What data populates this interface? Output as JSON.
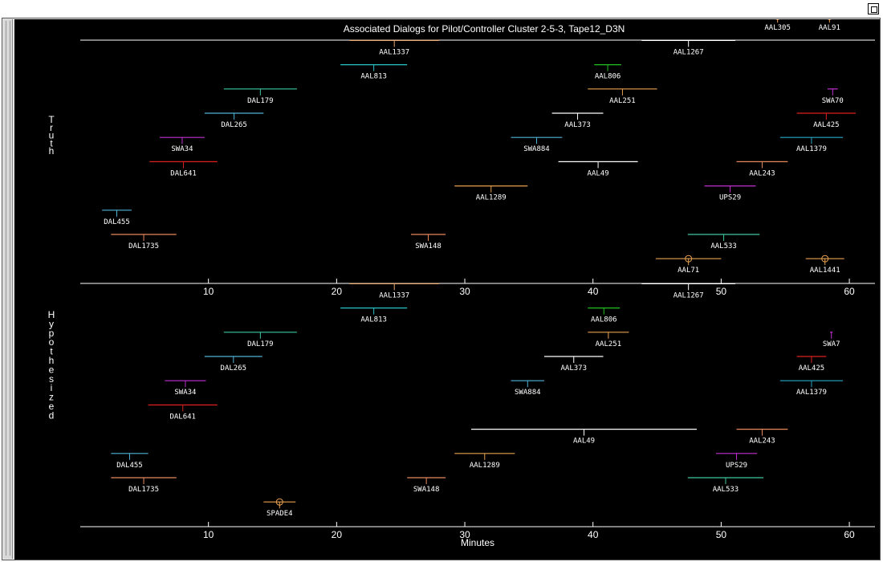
{
  "title": "Associated Dialogs for Pilot/Controller Cluster 2-5-3, Tape12_D3N",
  "xlabel": "Minutes",
  "colors": {
    "background": "#000000",
    "axis": "#ffffff",
    "text": "#ffffff"
  },
  "chart_data": [
    {
      "type": "timeline",
      "panel_label": "Truth",
      "xlim": [
        0,
        62
      ],
      "xticks": [
        10,
        20,
        30,
        40,
        50,
        60
      ],
      "rows": 10,
      "intervals": [
        {
          "name": "DAL455",
          "start": 1.7,
          "end": 4.0,
          "row": 1,
          "color": "#4fb3d9"
        },
        {
          "name": "DAL1735",
          "start": 2.4,
          "end": 7.5,
          "row": 0,
          "color": "#e8895c"
        },
        {
          "name": "DAL641",
          "start": 5.4,
          "end": 10.7,
          "row": 3,
          "color": "#dd2020"
        },
        {
          "name": "SWA34",
          "start": 6.2,
          "end": 9.7,
          "row": 4,
          "color": "#c030d0"
        },
        {
          "name": "DAL265",
          "start": 9.7,
          "end": 14.3,
          "row": 5,
          "color": "#4fb3d9"
        },
        {
          "name": "DAL179",
          "start": 11.2,
          "end": 16.9,
          "row": 6,
          "color": "#3cc8a0"
        },
        {
          "name": "AAL813",
          "start": 20.3,
          "end": 25.5,
          "row": 7,
          "color": "#29c4c4"
        },
        {
          "name": "AAL1337",
          "start": 21.0,
          "end": 28.0,
          "row": 8,
          "color": "#e8a870"
        },
        {
          "name": "SWA148",
          "start": 25.8,
          "end": 28.5,
          "row": 0,
          "color": "#e8895c"
        },
        {
          "name": "AAL1289",
          "start": 29.2,
          "end": 34.9,
          "row": 2,
          "color": "#e8a050"
        },
        {
          "name": "SWA884",
          "start": 33.6,
          "end": 37.6,
          "row": 4,
          "color": "#4fb3d9"
        },
        {
          "name": "AAL373",
          "start": 36.8,
          "end": 40.8,
          "row": 5,
          "color": "#ffffff"
        },
        {
          "name": "AAL49",
          "start": 37.3,
          "end": 43.5,
          "row": 3,
          "color": "#ffffff"
        },
        {
          "name": "AAL251",
          "start": 39.6,
          "end": 45.0,
          "row": 6,
          "color": "#e8a050"
        },
        {
          "name": "AAL806",
          "start": 40.1,
          "end": 42.2,
          "row": 7,
          "color": "#22c022"
        },
        {
          "name": "AAL1267",
          "start": 43.8,
          "end": 51.1,
          "row": 8,
          "color": "#ffffff"
        },
        {
          "name": "AAL71",
          "start": 44.9,
          "end": 50.0,
          "row": -1,
          "color": "#e8a050",
          "marker": "circle"
        },
        {
          "name": "AAL533",
          "start": 47.4,
          "end": 53.0,
          "row": 0,
          "color": "#3cc8a0"
        },
        {
          "name": "UPS29",
          "start": 48.7,
          "end": 52.7,
          "row": 2,
          "color": "#c030d0"
        },
        {
          "name": "AAL243",
          "start": 51.2,
          "end": 55.2,
          "row": 3,
          "color": "#e8895c"
        },
        {
          "name": "AAL305",
          "start": 52.0,
          "end": 56.8,
          "row": 9,
          "color": "#e8a050",
          "marker": "circle"
        },
        {
          "name": "AAL1379",
          "start": 54.6,
          "end": 59.5,
          "row": 4,
          "color": "#29a8c4"
        },
        {
          "name": "AAL425",
          "start": 55.9,
          "end": 60.5,
          "row": 5,
          "color": "#dd2020"
        },
        {
          "name": "AAL1441",
          "start": 56.6,
          "end": 59.6,
          "row": -1,
          "color": "#e8a050",
          "marker": "circle"
        },
        {
          "name": "SWA70",
          "start": 58.3,
          "end": 59.1,
          "row": 6,
          "color": "#c030d0"
        },
        {
          "name": "AAL91",
          "start": 57.4,
          "end": 59.5,
          "row": 9,
          "color": "#e8a050",
          "marker": "circle"
        }
      ]
    },
    {
      "type": "timeline",
      "panel_label": "Hypothesized",
      "xlim": [
        0,
        62
      ],
      "xticks": [
        10,
        20,
        30,
        40,
        50,
        60
      ],
      "rows": 9,
      "intervals": [
        {
          "name": "SPADE4",
          "start": 14.3,
          "end": 16.8,
          "row": -1,
          "color": "#e8a050",
          "marker": "circle"
        },
        {
          "name": "DAL1735",
          "start": 2.4,
          "end": 7.5,
          "row": 0,
          "color": "#e8895c"
        },
        {
          "name": "DAL455",
          "start": 2.4,
          "end": 5.3,
          "row": 1,
          "color": "#4fb3d9"
        },
        {
          "name": "DAL641",
          "start": 5.3,
          "end": 10.7,
          "row": 3,
          "color": "#dd2020"
        },
        {
          "name": "SWA34",
          "start": 6.6,
          "end": 9.8,
          "row": 4,
          "color": "#c030d0"
        },
        {
          "name": "DAL265",
          "start": 9.7,
          "end": 14.2,
          "row": 5,
          "color": "#4fb3d9"
        },
        {
          "name": "DAL179",
          "start": 11.2,
          "end": 16.9,
          "row": 6,
          "color": "#3cc8a0"
        },
        {
          "name": "AAL813",
          "start": 20.3,
          "end": 25.5,
          "row": 7,
          "color": "#29c4c4"
        },
        {
          "name": "AAL1337",
          "start": 21.0,
          "end": 28.0,
          "row": 8,
          "color": "#e8a870"
        },
        {
          "name": "SWA148",
          "start": 25.5,
          "end": 28.5,
          "row": 0,
          "color": "#e8895c"
        },
        {
          "name": "AAL1289",
          "start": 29.2,
          "end": 33.9,
          "row": 1,
          "color": "#e8a050"
        },
        {
          "name": "AAL49",
          "start": 30.5,
          "end": 48.1,
          "row": 2,
          "color": "#ffffff"
        },
        {
          "name": "SWA884",
          "start": 33.6,
          "end": 36.2,
          "row": 4,
          "color": "#4fb3d9"
        },
        {
          "name": "AAL373",
          "start": 36.2,
          "end": 40.8,
          "row": 5,
          "color": "#ffffff"
        },
        {
          "name": "AAL251",
          "start": 39.6,
          "end": 42.8,
          "row": 6,
          "color": "#e8a050"
        },
        {
          "name": "AAL806",
          "start": 39.6,
          "end": 42.1,
          "row": 7,
          "color": "#22c022"
        },
        {
          "name": "AAL1267",
          "start": 43.8,
          "end": 51.1,
          "row": 8,
          "color": "#ffffff"
        },
        {
          "name": "AAL533",
          "start": 47.4,
          "end": 53.3,
          "row": 0,
          "color": "#3cc8a0"
        },
        {
          "name": "UPS29",
          "start": 49.6,
          "end": 52.8,
          "row": 1,
          "color": "#c030d0"
        },
        {
          "name": "AAL243",
          "start": 51.2,
          "end": 55.2,
          "row": 2,
          "color": "#e8895c"
        },
        {
          "name": "AAL1379",
          "start": 54.6,
          "end": 59.5,
          "row": 4,
          "color": "#29a8c4"
        },
        {
          "name": "AAL425",
          "start": 55.9,
          "end": 58.2,
          "row": 5,
          "color": "#dd2020"
        },
        {
          "name": "SWA7",
          "start": 58.5,
          "end": 58.7,
          "row": 6,
          "color": "#c030d0"
        }
      ]
    }
  ]
}
